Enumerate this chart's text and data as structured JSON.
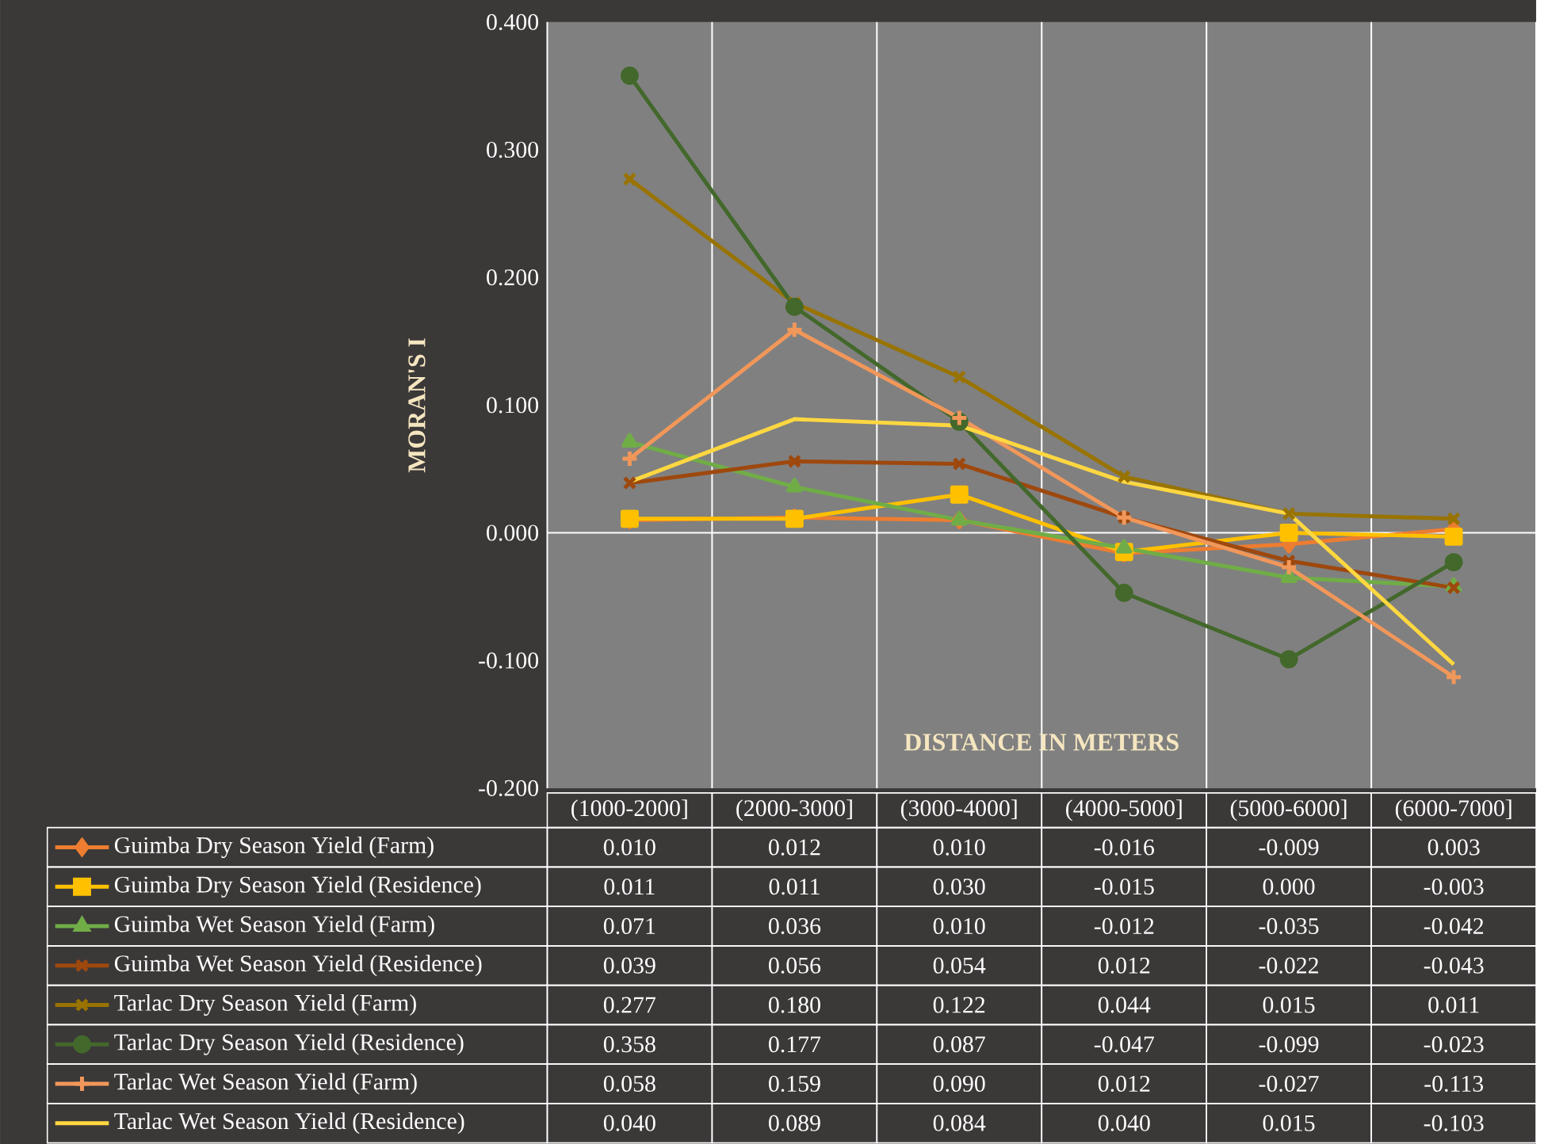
{
  "chart_data": {
    "type": "line",
    "xlabel": "DISTANCE IN METERS",
    "ylabel": "MORAN'S I",
    "categories": [
      "(1000-2000]",
      "(2000-3000]",
      "(3000-4000]",
      "(4000-5000]",
      "(5000-6000]",
      "(6000-7000]"
    ],
    "ylim": [
      -0.2,
      0.4
    ],
    "yticks": [
      {
        "value": -0.2,
        "label": "-0.200"
      },
      {
        "value": -0.1,
        "label": "-0.100"
      },
      {
        "value": 0,
        "label": "0.000"
      },
      {
        "value": 0.1,
        "label": "0.100"
      },
      {
        "value": 0.2,
        "label": "0.200"
      },
      {
        "value": 0.3,
        "label": "0.300"
      },
      {
        "value": 0.4,
        "label": "0.400"
      }
    ],
    "grid": "x",
    "legend": "bottom",
    "line_style": "solid",
    "ref_lines": [
      {
        "axis": "y",
        "value": 0,
        "color": "#ffffff"
      }
    ],
    "series": [
      {
        "name": "Guimba Dry Season Yield (Farm)",
        "color": "#ed7d31",
        "marker": "diamond",
        "values": [
          0.01,
          0.012,
          0.01,
          -0.016,
          -0.009,
          0.003
        ],
        "value_labels": [
          "0.010",
          "0.012",
          "0.010",
          "-0.016",
          "-0.009",
          "0.003"
        ]
      },
      {
        "name": "Guimba Dry Season Yield (Residence)",
        "color": "#ffc000",
        "marker": "square",
        "values": [
          0.011,
          0.011,
          0.03,
          -0.015,
          0.0,
          -0.003
        ],
        "value_labels": [
          "0.011",
          "0.011",
          "0.030",
          "-0.015",
          "0.000",
          "-0.003"
        ]
      },
      {
        "name": "Guimba Wet Season Yield (Farm)",
        "color": "#70ad47",
        "marker": "triangle",
        "values": [
          0.071,
          0.036,
          0.01,
          -0.012,
          -0.035,
          -0.042
        ],
        "value_labels": [
          "0.071",
          "0.036",
          "0.010",
          "-0.012",
          "-0.035",
          "-0.042"
        ]
      },
      {
        "name": "Guimba Wet Season Yield (Residence)",
        "color": "#9e480e",
        "marker": "cross",
        "values": [
          0.039,
          0.056,
          0.054,
          0.012,
          -0.022,
          -0.043
        ],
        "value_labels": [
          "0.039",
          "0.056",
          "0.054",
          "0.012",
          "-0.022",
          "-0.043"
        ]
      },
      {
        "name": "Tarlac Dry Season Yield (Farm)",
        "color": "#997300",
        "marker": "cross",
        "values": [
          0.277,
          0.18,
          0.122,
          0.044,
          0.015,
          0.011
        ],
        "value_labels": [
          "0.277",
          "0.180",
          "0.122",
          "0.044",
          "0.015",
          "0.011"
        ]
      },
      {
        "name": "Tarlac Dry Season Yield (Residence)",
        "color": "#43682b",
        "marker": "circle",
        "values": [
          0.358,
          0.177,
          0.087,
          -0.047,
          -0.099,
          -0.023
        ],
        "value_labels": [
          "0.358",
          "0.177",
          "0.087",
          "-0.047",
          "-0.099",
          "-0.023"
        ]
      },
      {
        "name": "Tarlac Wet Season Yield (Farm)",
        "color": "#f1975a",
        "marker": "plus",
        "values": [
          0.058,
          0.159,
          0.09,
          0.012,
          -0.027,
          -0.113
        ],
        "value_labels": [
          "0.058",
          "0.159",
          "0.090",
          "0.012",
          "-0.027",
          "-0.113"
        ]
      },
      {
        "name": "Tarlac Wet Season Yield (Residence)",
        "color": "#ffd740",
        "marker": "none",
        "values": [
          0.04,
          0.089,
          0.084,
          0.04,
          0.015,
          -0.103
        ],
        "value_labels": [
          "0.040",
          "0.089",
          "0.084",
          "0.040",
          "0.015",
          "-0.103"
        ]
      }
    ]
  }
}
